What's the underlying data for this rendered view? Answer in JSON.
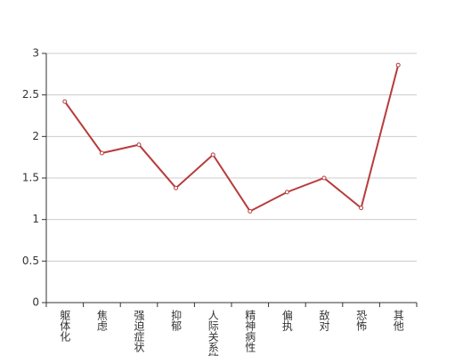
{
  "chart_data": {
    "type": "line",
    "categories": [
      "躯体化",
      "焦虑",
      "强迫症状",
      "抑郁",
      "人际关系敏感",
      "精神病性",
      "偏执",
      "敌对",
      "恐怖",
      "其他"
    ],
    "values": [
      2.42,
      1.8,
      1.9,
      1.38,
      1.78,
      1.1,
      1.33,
      1.5,
      1.14,
      2.86
    ],
    "color": "#b83b3b",
    "ylim": [
      0,
      3
    ],
    "yticks": [
      0,
      0.5,
      1,
      1.5,
      2,
      2.5,
      3
    ],
    "grid": true
  }
}
